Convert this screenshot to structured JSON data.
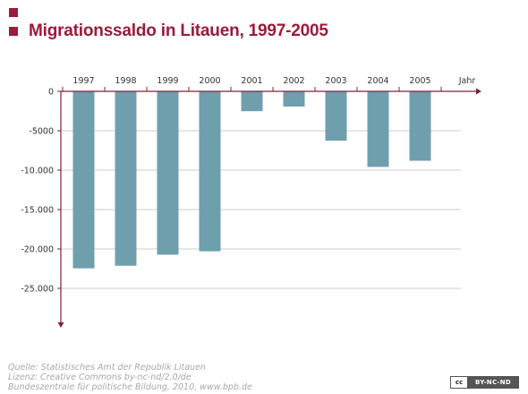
{
  "header": {
    "title": "Migrationssaldo in Litauen, 1997-2005"
  },
  "chart_data": {
    "type": "bar",
    "title": "Migrationssaldo in Litauen, 1997-2005",
    "xlabel": "Jahr",
    "ylabel": "",
    "categories": [
      "1997",
      "1998",
      "1999",
      "2000",
      "2001",
      "2002",
      "2003",
      "2004",
      "2005"
    ],
    "values": [
      -22460,
      -22130,
      -20730,
      -20300,
      -2520,
      -1930,
      -6260,
      -9590,
      -8810
    ],
    "yticks": [
      0,
      -5000,
      -10000,
      -15000,
      -20000,
      -25000
    ],
    "ytick_labels": [
      "0",
      "-5000",
      "-10.000",
      "-15.000",
      "-20.000",
      "-25.000"
    ],
    "ylim": [
      -29500,
      0
    ],
    "grid": true,
    "bar_color": "#6f9fad",
    "axis_color": "#7a2340"
  },
  "footer": {
    "source_line1": "Quelle: Statistisches Amt der Republik Litauen",
    "source_line2": "Lizenz: Creative Commons by-nc-nd/2.0/de",
    "source_line3": "Bundeszentrale für politische Bildung, 2010, www.bpb.de",
    "license_badge_left": "cc",
    "license_badge_right": "BY-NC-ND"
  },
  "colors": {
    "title": "#9b1b3a",
    "bar": "#6f9fad",
    "axis": "#7a2340",
    "grid": "#cccccc",
    "source_text": "#a8a8a8"
  }
}
